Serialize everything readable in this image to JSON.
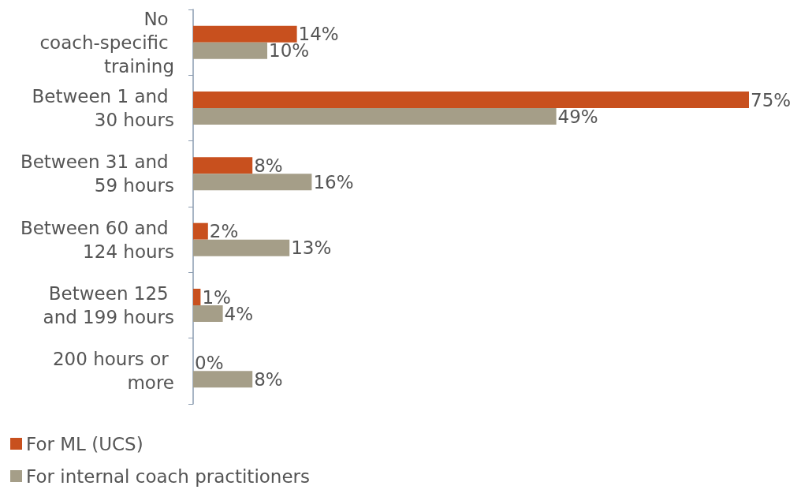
{
  "chart_data": {
    "type": "bar",
    "orientation": "horizontal",
    "categories": [
      "No coach-specific training",
      "Between 1 and 30 hours",
      "Between 31 and 59 hours",
      "Between 60 and 124 hours",
      "Between 125 and 199 hours",
      "200 hours or more"
    ],
    "series": [
      {
        "name": "For ML (UCS)",
        "color": "#c8501e",
        "values": [
          14,
          75,
          8,
          2,
          1,
          0
        ],
        "value_labels": [
          "14%",
          "75%",
          "8%",
          "2%",
          "1%",
          "0%"
        ]
      },
      {
        "name": "For internal coach practitioners",
        "color": "#a59e88",
        "values": [
          10,
          49,
          16,
          13,
          4,
          8
        ],
        "value_labels": [
          "10%",
          "49%",
          "16%",
          "13%",
          "4%",
          "8%"
        ]
      }
    ],
    "legend": "bottom left",
    "grid": false
  }
}
